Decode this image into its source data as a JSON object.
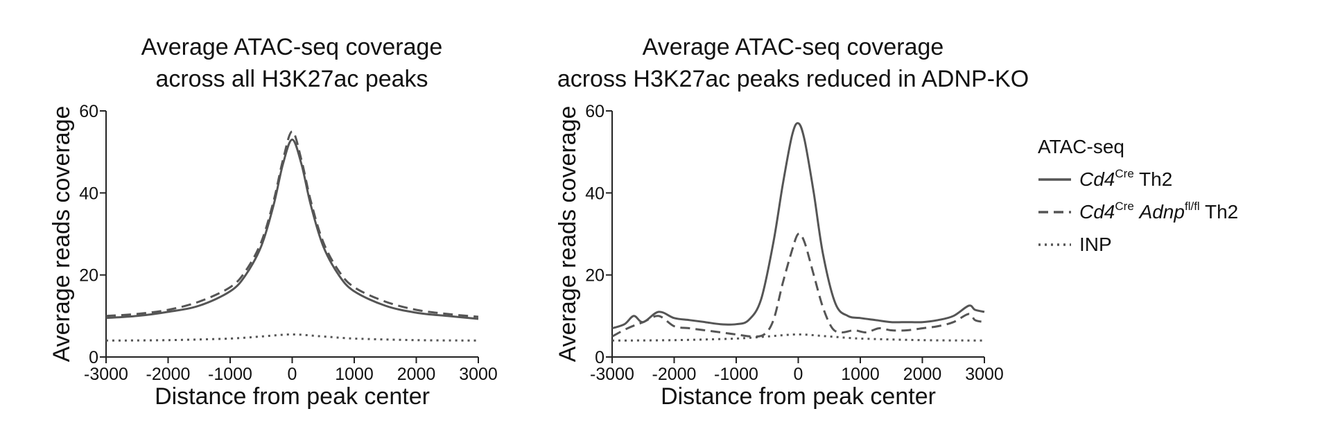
{
  "chart_data": [
    {
      "type": "line",
      "title": [
        "Average ATAC-seq coverage",
        "across all H3K27ac peaks"
      ],
      "xlabel": "Distance from peak center",
      "ylabel": "Average reads coverage",
      "xlim": [
        -3000,
        3000
      ],
      "ylim": [
        0,
        60
      ],
      "xticks": [
        -3000,
        -2000,
        -1000,
        0,
        1000,
        2000,
        3000
      ],
      "yticks": [
        0,
        20,
        40,
        60
      ],
      "xtick_labels": [
        "-3000",
        "-2000",
        "-1000",
        "0",
        "1000",
        "2000",
        "3000"
      ],
      "ytick_labels": [
        "0",
        "20",
        "40",
        "60"
      ],
      "series": [
        {
          "style": "solid",
          "x": [
            -3000,
            -2500,
            -2000,
            -1500,
            -1000,
            -750,
            -500,
            -300,
            -150,
            0,
            150,
            300,
            500,
            750,
            1000,
            1500,
            2000,
            2500,
            3000
          ],
          "y": [
            9.5,
            10,
            11,
            12.5,
            16,
            20,
            27,
            37,
            47,
            53,
            47,
            37,
            27,
            20,
            16,
            12.5,
            10.8,
            10,
            9.3
          ]
        },
        {
          "style": "dashed",
          "x": [
            -3000,
            -2500,
            -2000,
            -1500,
            -1000,
            -750,
            -500,
            -300,
            -150,
            0,
            150,
            300,
            500,
            750,
            1000,
            1500,
            2000,
            2500,
            3000
          ],
          "y": [
            10,
            10.5,
            11.5,
            13.5,
            17,
            21,
            28,
            38,
            48,
            55,
            48,
            38,
            28,
            21,
            17,
            13.5,
            11.5,
            10.5,
            9.8
          ]
        },
        {
          "style": "dotted",
          "x": [
            -3000,
            -2000,
            -1000,
            -500,
            0,
            500,
            1000,
            2000,
            3000
          ],
          "y": [
            4,
            4.1,
            4.5,
            5,
            5.5,
            5,
            4.5,
            4.1,
            4
          ]
        }
      ]
    },
    {
      "type": "line",
      "title": [
        "Average ATAC-seq coverage",
        "across H3K27ac peaks reduced in ADNP-KO"
      ],
      "xlabel": "Distance from peak center",
      "ylabel": "Average reads coverage",
      "xlim": [
        -3000,
        3000
      ],
      "ylim": [
        0,
        60
      ],
      "xticks": [
        -3000,
        -2000,
        -1000,
        0,
        1000,
        2000,
        3000
      ],
      "yticks": [
        0,
        20,
        40,
        60
      ],
      "xtick_labels": [
        "-3000",
        "-2000",
        "-1000",
        "0",
        "1000",
        "2000",
        "3000"
      ],
      "ytick_labels": [
        "0",
        "20",
        "40",
        "60"
      ],
      "series": [
        {
          "style": "solid",
          "x": [
            -3000,
            -2800,
            -2650,
            -2500,
            -2250,
            -2000,
            -1750,
            -1500,
            -1250,
            -1000,
            -800,
            -600,
            -400,
            -250,
            -100,
            0,
            100,
            250,
            400,
            600,
            800,
            1000,
            1250,
            1500,
            1750,
            2000,
            2250,
            2500,
            2750,
            2850,
            3000
          ],
          "y": [
            7,
            8,
            10,
            8.5,
            11,
            9.5,
            9,
            8.5,
            8,
            8,
            9,
            14,
            28,
            42,
            54,
            57,
            53,
            40,
            25,
            13,
            10,
            9.5,
            9,
            8.5,
            8.5,
            8.5,
            9,
            10,
            12.5,
            11.5,
            11
          ]
        },
        {
          "style": "dashed",
          "x": [
            -3000,
            -2750,
            -2500,
            -2250,
            -2000,
            -1750,
            -1500,
            -1250,
            -1000,
            -750,
            -550,
            -400,
            -250,
            -100,
            0,
            100,
            250,
            400,
            550,
            700,
            900,
            1100,
            1300,
            1500,
            1750,
            2000,
            2250,
            2500,
            2750,
            2850,
            3000
          ],
          "y": [
            5,
            7,
            8.5,
            10,
            7.5,
            7,
            6.5,
            6,
            5.5,
            5,
            5.5,
            9,
            18,
            26,
            30,
            28,
            20,
            12,
            7,
            6,
            6.5,
            6,
            7,
            6.5,
            6.5,
            7,
            7.5,
            8.5,
            10.5,
            9,
            8.5
          ]
        },
        {
          "style": "dotted",
          "x": [
            -3000,
            -2000,
            -1000,
            -500,
            0,
            500,
            1000,
            2000,
            3000
          ],
          "y": [
            4,
            4.1,
            4.5,
            5,
            5.5,
            5,
            4.5,
            4.1,
            4
          ]
        }
      ]
    }
  ],
  "legend": {
    "title": "ATAC-seq",
    "items": [
      {
        "style": "solid",
        "parts": [
          {
            "text": "Cd4",
            "italic": true
          },
          {
            "text": "Cre",
            "sup": true
          },
          {
            "text": " Th2"
          }
        ]
      },
      {
        "style": "dashed",
        "parts": [
          {
            "text": "Cd4",
            "italic": true
          },
          {
            "text": "Cre",
            "sup": true
          },
          {
            "text": " "
          },
          {
            "text": "Adnp",
            "italic": true
          },
          {
            "text": "fl/fl",
            "sup": true
          },
          {
            "text": " Th2"
          }
        ]
      },
      {
        "style": "dotted",
        "parts": [
          {
            "text": "INP"
          }
        ]
      }
    ]
  },
  "colors": {
    "line": "#555555",
    "axis": "#222222",
    "text": "#111111"
  }
}
